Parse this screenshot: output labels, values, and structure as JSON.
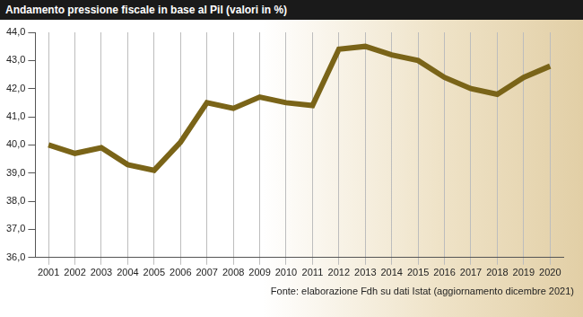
{
  "chart_data": {
    "type": "line",
    "title": "Andamento pressione fiscale in base al Pil (valori in %)",
    "annotations": [
      "Fonte: elaborazione Fdh su dati Istat (aggiornamento dicembre 2021)"
    ],
    "categories": [
      "2001",
      "2002",
      "2003",
      "2004",
      "2005",
      "2006",
      "2007",
      "2008",
      "2009",
      "2010",
      "2011",
      "2012",
      "2013",
      "2014",
      "2015",
      "2016",
      "2017",
      "2018",
      "2019",
      "2020"
    ],
    "values": [
      40.0,
      39.7,
      39.9,
      39.3,
      39.1,
      40.1,
      41.5,
      41.3,
      41.7,
      41.5,
      41.4,
      43.4,
      43.5,
      43.2,
      43.0,
      42.4,
      42.0,
      41.8,
      42.4,
      42.8
    ],
    "color": "#7a6418",
    "ylim": [
      36.0,
      44.0
    ],
    "yticks": [
      {
        "value": 36.0,
        "label": "36,0"
      },
      {
        "value": 37.0,
        "label": "37,0"
      },
      {
        "value": 38.0,
        "label": "38,0"
      },
      {
        "value": 39.0,
        "label": "39,0"
      },
      {
        "value": 40.0,
        "label": "40,0"
      },
      {
        "value": 41.0,
        "label": "41,0"
      },
      {
        "value": 42.0,
        "label": "42,0"
      },
      {
        "value": 43.0,
        "label": "43,0"
      },
      {
        "value": 44.0,
        "label": "44,0"
      }
    ],
    "grid": true
  }
}
